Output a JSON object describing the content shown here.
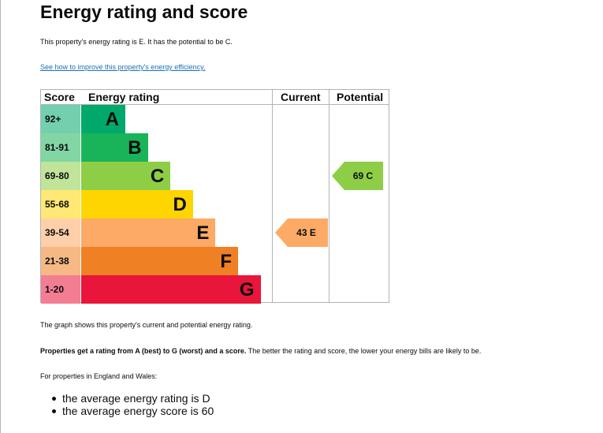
{
  "heading": "Energy rating and score",
  "intro": "This property's energy rating is E. It has the potential to be C.",
  "improve_link": "See how to improve this property's energy efficiency.",
  "chart_data": {
    "type": "table",
    "columns": [
      "Score",
      "Energy rating",
      "Current",
      "Potential"
    ],
    "bands": [
      {
        "score": "92+",
        "letter": "A",
        "color": "#00a86b"
      },
      {
        "score": "81-91",
        "letter": "B",
        "color": "#19b459"
      },
      {
        "score": "69-80",
        "letter": "C",
        "color": "#8dce46"
      },
      {
        "score": "55-68",
        "letter": "D",
        "color": "#ffd500"
      },
      {
        "score": "39-54",
        "letter": "E",
        "color": "#fcaa65"
      },
      {
        "score": "21-38",
        "letter": "F",
        "color": "#ef8023"
      },
      {
        "score": "1-20",
        "letter": "G",
        "color": "#e9153b"
      }
    ],
    "current": {
      "score": 43,
      "letter": "E",
      "label": "43 E",
      "color": "#fcaa65"
    },
    "potential": {
      "score": 69,
      "letter": "C",
      "label": "69 C",
      "color": "#8dce46"
    }
  },
  "graph_note": "The graph shows this property's current and potential energy rating.",
  "ratings_bold": "Properties get a rating from A (best) to G (worst) and a score.",
  "ratings_rest": " The better the rating and score, the lower your energy bills are likely to be.",
  "england_wales": "For properties in England and Wales:",
  "averages": [
    "the average energy rating is D",
    "the average energy score is 60"
  ]
}
